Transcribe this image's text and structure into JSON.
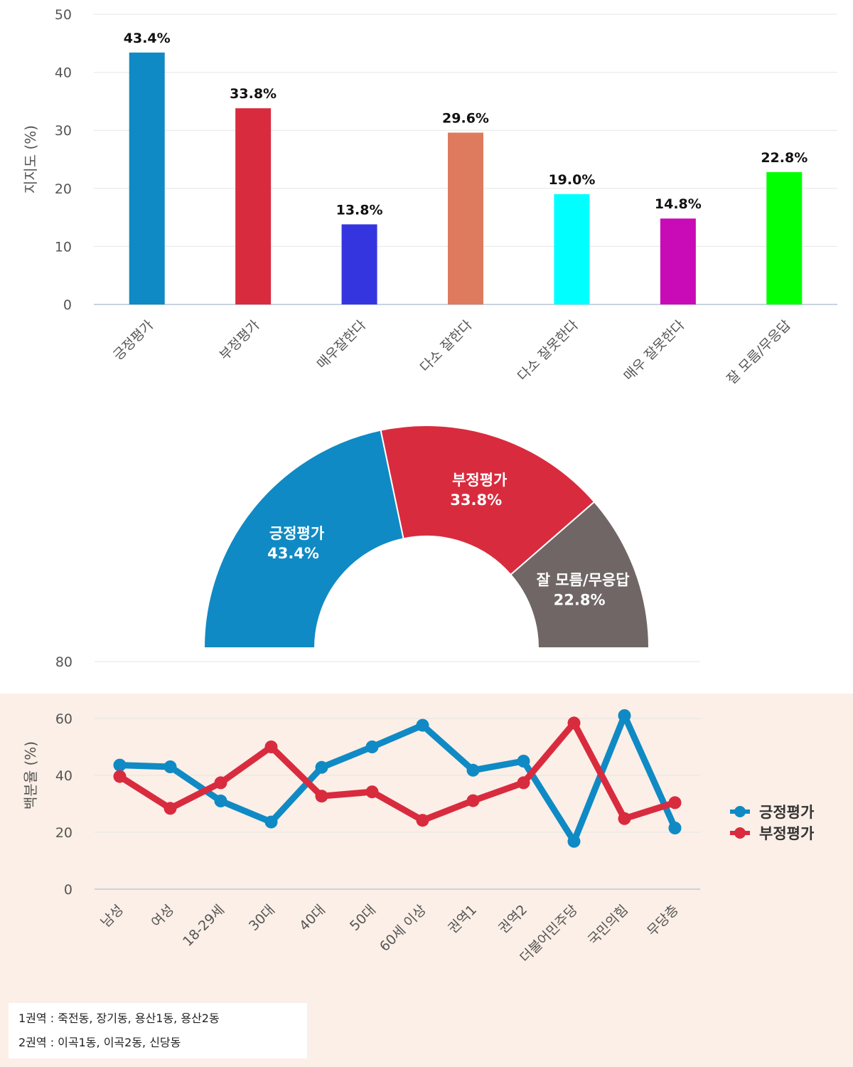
{
  "chart_data": [
    {
      "type": "bar",
      "ylabel": "지지도 (%)",
      "ylim": [
        0,
        50
      ],
      "yticks": [
        0,
        10,
        20,
        30,
        40,
        50
      ],
      "grid": true,
      "categories": [
        "긍정평가",
        "부정평가",
        "매우잘한다",
        "다소 잘한다",
        "다소 잘못한다",
        "매우 잘못한다",
        "잘 모름/무응답"
      ],
      "values": [
        43.4,
        33.8,
        13.8,
        29.6,
        19.0,
        14.8,
        22.8
      ],
      "labels": [
        "43.4%",
        "33.8%",
        "13.8%",
        "29.6%",
        "19.0%",
        "14.8%",
        "22.8%"
      ],
      "colors": [
        "#0f8ac4",
        "#d92b3e",
        "#3535e0",
        "#de7a5e",
        "#00ffff",
        "#c90ab7",
        "#00ff00"
      ]
    },
    {
      "type": "pie",
      "subtype": "semi-donut",
      "slices": [
        {
          "name": "긍정평가",
          "value": 43.4,
          "label": "43.4%",
          "color": "#0f8ac4"
        },
        {
          "name": "부정평가",
          "value": 33.8,
          "label": "33.8%",
          "color": "#d92b3e"
        },
        {
          "name": "잘 모름/무응답",
          "value": 22.8,
          "label": "22.8%",
          "color": "#706666"
        }
      ]
    },
    {
      "type": "line",
      "ylabel": "백분율 (%)",
      "ylim": [
        0,
        80
      ],
      "yticks": [
        0,
        20,
        40,
        60,
        80
      ],
      "grid": true,
      "legend_position": "right",
      "categories": [
        "남성",
        "여성",
        "18-29세",
        "30대",
        "40대",
        "50대",
        "60세 이상",
        "권역1",
        "권역2",
        "더불어민주당",
        "국민의힘",
        "무당층"
      ],
      "series": [
        {
          "name": "긍정평가",
          "color": "#0f8ac4",
          "values": [
            43.6,
            43.0,
            31.0,
            23.6,
            42.8,
            50.0,
            57.6,
            41.8,
            45.0,
            16.8,
            61.0,
            21.5
          ]
        },
        {
          "name": "부정평가",
          "color": "#d92b3e",
          "values": [
            39.6,
            28.4,
            37.4,
            50.0,
            32.7,
            34.2,
            24.2,
            31.1,
            37.4,
            58.4,
            24.8,
            30.4
          ]
        }
      ]
    }
  ],
  "notes": [
    "1권역 : 죽전동, 장기동, 용산1동, 용산2동",
    "2권역 : 이곡1동, 이곡2동, 신당동"
  ]
}
